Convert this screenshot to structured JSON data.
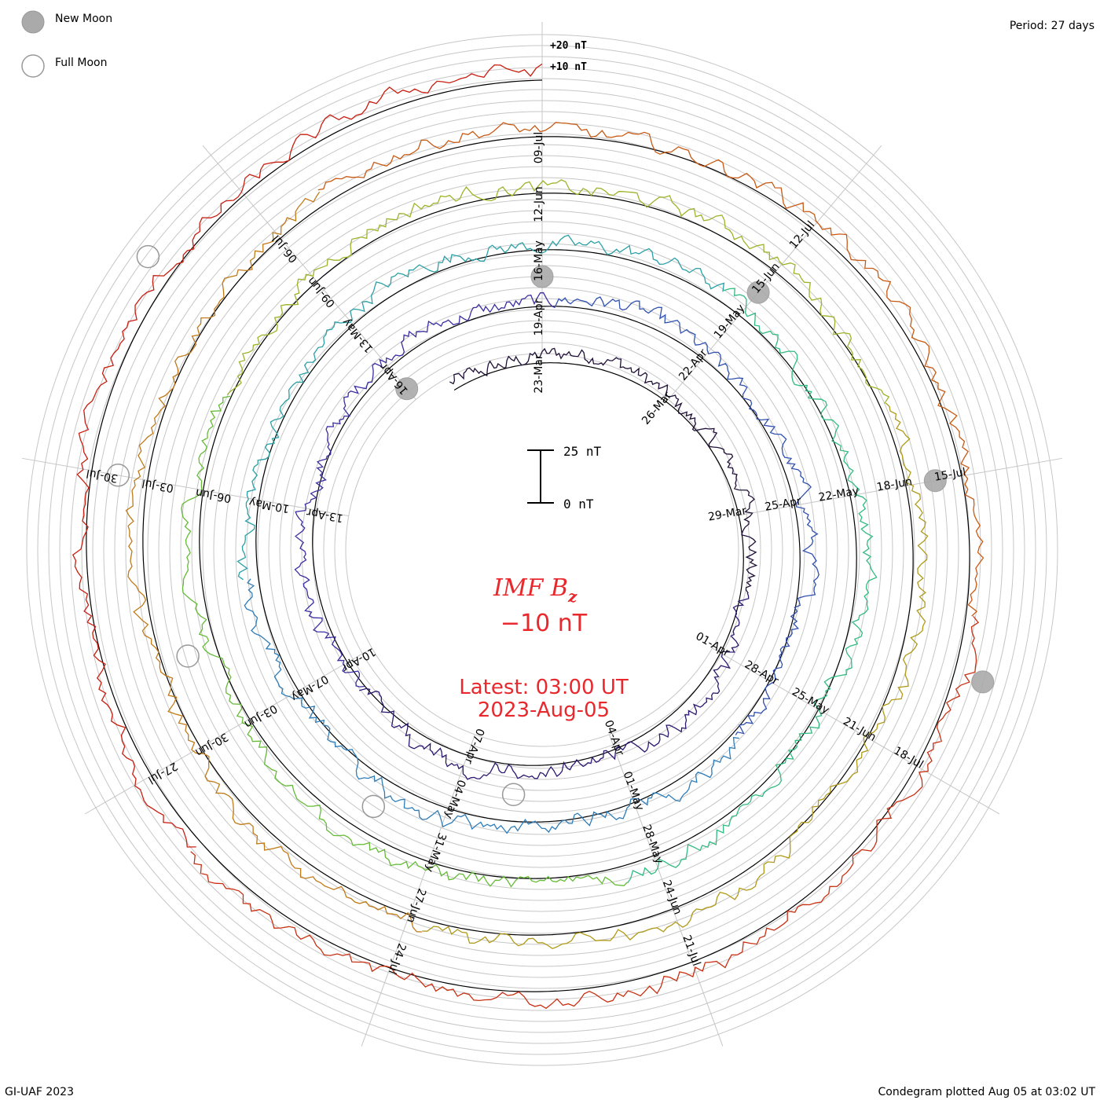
{
  "legend": {
    "new_moon_label": "New Moon",
    "full_moon_label": "Full Moon"
  },
  "period_label": "Period: 27 days",
  "footer": {
    "left": "GI-UAF 2023",
    "right": "Condegram plotted Aug 05 at 03:02 UT"
  },
  "title": {
    "line1": "IMF B",
    "subscript": "z",
    "value": "−10 nT"
  },
  "latest": {
    "line1": "Latest: 03:00 UT",
    "line2": "2023-Aug-05"
  },
  "colors": {
    "title_red": "#e8282d",
    "grid": "#bbbbbb"
  },
  "chart_data": {
    "type": "line",
    "description_kind": "condegram",
    "period_days": 27,
    "scale_bar": {
      "top_label": "25 nT",
      "bottom_label": "0 nT",
      "value_nT": 25
    },
    "ring_labels": [
      "+20 nT",
      "+10 nT"
    ],
    "turns": [
      {
        "color": "#201038",
        "date_labels": [
          "23-Mar",
          "26-Mar",
          "29-Mar",
          "01-Apr",
          "04-Apr",
          "07-Apr",
          "10-Apr",
          "13-Apr",
          "16-Apr"
        ]
      },
      {
        "color": "#3536a8",
        "date_labels": [
          "19-Apr",
          "22-Apr",
          "25-Apr",
          "28-Apr",
          "01-May",
          "04-May",
          "07-May",
          "10-May",
          "13-May"
        ]
      },
      {
        "color": "#2aa0a6",
        "date_labels": [
          "16-May",
          "19-May",
          "22-May",
          "25-May",
          "28-May",
          "31-May",
          "03-Jun",
          "06-Jun",
          "09-Jun"
        ]
      },
      {
        "color": "#64bb35",
        "date_labels": [
          "12-Jun",
          "15-Jun",
          "18-Jun",
          "21-Jun",
          "24-Jun",
          "27-Jun",
          "30-Jun",
          "03-Jul",
          "06-Jul"
        ]
      },
      {
        "color": "#b09a18",
        "date_labels": [
          "09-Jul",
          "12-Jul",
          "15-Jul",
          "18-Jul",
          "21-Jul",
          "24-Jul",
          "27-Jul",
          "30-Jul"
        ]
      },
      {
        "color": "#c81e10",
        "date_labels": []
      }
    ],
    "new_moons": [
      {
        "turn": 0,
        "date": "20-Mar"
      },
      {
        "turn": 1,
        "date": "19-Apr"
      },
      {
        "turn": 2,
        "date": "19-May"
      },
      {
        "turn": 3,
        "date": "18-Jun"
      },
      {
        "turn": 4,
        "date": "17-Jul"
      }
    ],
    "full_moons": [
      {
        "turn": 1,
        "date": "06-Apr"
      },
      {
        "turn": 2,
        "date": "05-May"
      },
      {
        "turn": 3,
        "date": "04-Jun"
      },
      {
        "turn": 4,
        "date": "03-Jul"
      },
      {
        "turn": 5,
        "date": "01-Aug"
      }
    ]
  }
}
